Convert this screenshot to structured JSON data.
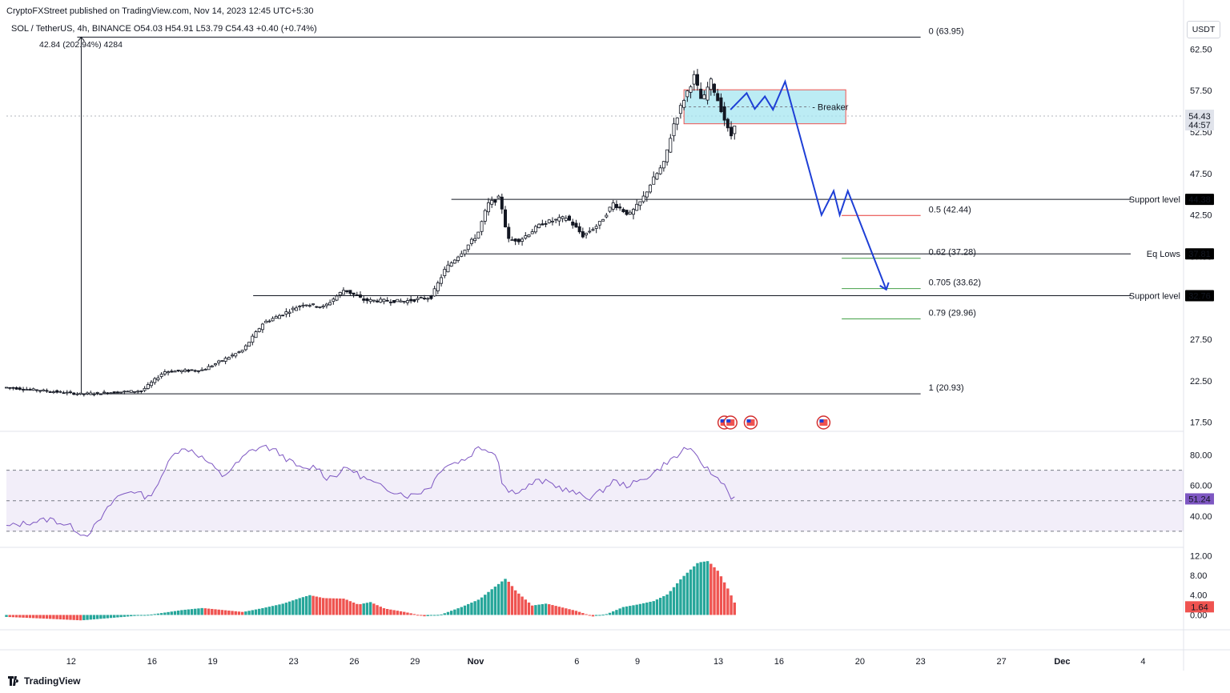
{
  "published_line": "CryptoFXStreet published on TradingView.com, Nov 14, 2023 12:45 UTC+5:30",
  "symbol_line": {
    "symbol": "SOL / TetherUS, 4h, BINANCE",
    "open": "O54.03",
    "high": "H54.91",
    "low": "L53.79",
    "close": "C54.43",
    "change": "+0.40 (+0.74%)"
  },
  "measure_label": "42.84 (202.94%) 4284",
  "currency": "USDT",
  "colors": {
    "up": "#26a69a",
    "down": "#ef5350",
    "rsi": "#7e57c2",
    "projection": "#1e3fd6",
    "breaker_fill": "#a5e5f0",
    "support_label": "#e53935",
    "fib_green": "#43a047"
  },
  "chart_data": [
    {
      "type": "candlestick",
      "title": "SOL / TetherUS, 4h, BINANCE",
      "ylim": [
        16.5,
        66.5
      ],
      "y_ticks": [
        "62.50",
        "57.50",
        "52.50",
        "47.50",
        "42.50",
        "37.50",
        "32.50",
        "27.50",
        "22.50",
        "17.50"
      ],
      "x_tick_labels": [
        "12",
        "16",
        "19",
        "23",
        "26",
        "29",
        "Nov",
        "6",
        "9",
        "13",
        "16",
        "20",
        "23",
        "27",
        "Dec",
        "4"
      ],
      "x_tick_days": [
        12,
        16,
        19,
        23,
        26,
        29,
        32,
        37,
        40,
        44,
        47,
        51,
        54,
        58,
        61,
        65
      ],
      "x_range_days": [
        8.8,
        67.0
      ],
      "key_points": [
        [
          8.8,
          21.7
        ],
        [
          12.5,
          20.9
        ],
        [
          15.5,
          21.3
        ],
        [
          16.6,
          23.6
        ],
        [
          18.5,
          23.8
        ],
        [
          20.5,
          26.2
        ],
        [
          21.5,
          29.5
        ],
        [
          22.5,
          30.6
        ],
        [
          23.5,
          31.8
        ],
        [
          24.5,
          31.4
        ],
        [
          25.5,
          33.5
        ],
        [
          26.5,
          32.2
        ],
        [
          28.5,
          32.1
        ],
        [
          29.8,
          32.6
        ],
        [
          30.5,
          36.0
        ],
        [
          31.5,
          38.5
        ],
        [
          32.1,
          40.2
        ],
        [
          32.6,
          43.8
        ],
        [
          33.2,
          44.6
        ],
        [
          33.6,
          39.5
        ],
        [
          34.2,
          39.5
        ],
        [
          35.3,
          41.5
        ],
        [
          36.5,
          42.2
        ],
        [
          37.3,
          40.0
        ],
        [
          38.1,
          41.4
        ],
        [
          38.8,
          43.9
        ],
        [
          39.6,
          42.5
        ],
        [
          40.2,
          44.2
        ],
        [
          40.7,
          46.5
        ],
        [
          41.3,
          48.7
        ],
        [
          41.8,
          53.5
        ],
        [
          42.3,
          56.5
        ],
        [
          42.8,
          59.2
        ],
        [
          43.2,
          56.0
        ],
        [
          43.6,
          58.8
        ],
        [
          44.1,
          55.5
        ],
        [
          44.6,
          51.8
        ],
        [
          44.9,
          54.4
        ]
      ],
      "annotations": {
        "fib_levels": [
          {
            "label": "0 (63.95)",
            "value": 63.95
          },
          {
            "label": "0.5 (42.44)",
            "value": 42.44
          },
          {
            "label": "0.62 (37.28)",
            "value": 37.28
          },
          {
            "label": "0.705 (33.62)",
            "value": 33.62
          },
          {
            "label": "0.79 (29.96)",
            "value": 29.96
          },
          {
            "label": "1 (20.93)",
            "value": 20.93
          }
        ],
        "horizontal_levels": [
          {
            "label": "Support level",
            "value": 44.38,
            "badge": "44.38"
          },
          {
            "label": "Eq Lows",
            "value": 37.81,
            "badge": "37.81"
          },
          {
            "label": "Support level",
            "value": 32.76,
            "badge": "32.76"
          }
        ],
        "breaker_box": {
          "label": "Breaker",
          "y_low": 53.5,
          "y_high": 57.6,
          "x_start_day": 42.3,
          "x_end_day": 50.3
        },
        "projection_path": [
          [
            44.6,
            55.2
          ],
          [
            45.4,
            57.2
          ],
          [
            45.8,
            55.3
          ],
          [
            46.3,
            56.8
          ],
          [
            46.7,
            55.2
          ],
          [
            47.3,
            58.6
          ],
          [
            49.1,
            42.5
          ],
          [
            49.7,
            45.4
          ],
          [
            50.0,
            42.5
          ],
          [
            50.4,
            45.4
          ],
          [
            52.3,
            33.5
          ]
        ],
        "current_price": {
          "value": 54.43,
          "badge": "54.43",
          "countdown": "44:57"
        }
      }
    },
    {
      "type": "line",
      "name": "RSI",
      "ylim": [
        20,
        95
      ],
      "y_ticks": [
        "80.00",
        "60.00",
        "40.00"
      ],
      "band": [
        30,
        70
      ],
      "midline": 50,
      "last_value": "51.24",
      "key_points": [
        [
          8.8,
          33
        ],
        [
          10,
          36
        ],
        [
          11,
          38
        ],
        [
          12,
          33
        ],
        [
          12.7,
          27
        ],
        [
          13.3,
          35
        ],
        [
          14.2,
          52
        ],
        [
          15.0,
          57
        ],
        [
          15.8,
          52
        ],
        [
          16.5,
          65
        ],
        [
          17.0,
          82
        ],
        [
          17.9,
          84
        ],
        [
          18.7,
          76
        ],
        [
          19.5,
          66
        ],
        [
          20.1,
          73
        ],
        [
          20.8,
          82
        ],
        [
          21.5,
          86
        ],
        [
          22.2,
          82
        ],
        [
          22.9,
          75
        ],
        [
          23.5,
          70
        ],
        [
          24.1,
          73
        ],
        [
          24.6,
          65
        ],
        [
          25.1,
          67
        ],
        [
          25.7,
          72
        ],
        [
          26.2,
          67
        ],
        [
          26.9,
          62
        ],
        [
          27.5,
          58
        ],
        [
          28.1,
          56
        ],
        [
          28.7,
          53
        ],
        [
          29.3,
          56
        ],
        [
          29.8,
          60
        ],
        [
          30.4,
          73
        ],
        [
          31.0,
          75
        ],
        [
          31.6,
          78
        ],
        [
          32.1,
          85
        ],
        [
          32.6,
          84
        ],
        [
          33.1,
          79
        ],
        [
          33.3,
          63
        ],
        [
          33.6,
          56
        ],
        [
          34.3,
          57
        ],
        [
          35.0,
          63
        ],
        [
          35.6,
          62
        ],
        [
          36.3,
          58
        ],
        [
          37.1,
          54
        ],
        [
          37.6,
          52
        ],
        [
          38.2,
          56
        ],
        [
          38.8,
          63
        ],
        [
          39.4,
          60
        ],
        [
          40.0,
          62
        ],
        [
          40.5,
          66
        ],
        [
          41.0,
          70
        ],
        [
          41.5,
          76
        ],
        [
          42.0,
          79
        ],
        [
          42.4,
          86
        ],
        [
          42.8,
          80
        ],
        [
          43.3,
          73
        ],
        [
          43.8,
          66
        ],
        [
          44.2,
          63
        ],
        [
          44.6,
          53
        ],
        [
          44.9,
          51
        ]
      ]
    },
    {
      "type": "bar",
      "name": "Momentum histogram",
      "ylim": [
        -3,
        13.5
      ],
      "y_ticks": [
        "12.00",
        "8.00",
        "4.00",
        "0.00"
      ],
      "last_value": "1.64",
      "key_points": [
        [
          8.8,
          -0.4
        ],
        [
          11.0,
          -0.8
        ],
        [
          12.5,
          -1.1
        ],
        [
          14.0,
          -0.6
        ],
        [
          16.0,
          0.1
        ],
        [
          17.5,
          1.0
        ],
        [
          18.5,
          1.4
        ],
        [
          19.5,
          1.0
        ],
        [
          20.5,
          0.6
        ],
        [
          21.5,
          1.4
        ],
        [
          22.5,
          2.3
        ],
        [
          23.3,
          3.4
        ],
        [
          23.8,
          4.0
        ],
        [
          24.5,
          3.4
        ],
        [
          25.5,
          3.3
        ],
        [
          26.2,
          2.1
        ],
        [
          26.8,
          2.6
        ],
        [
          27.5,
          1.3
        ],
        [
          28.5,
          0.6
        ],
        [
          29.5,
          -0.3
        ],
        [
          30.3,
          0.1
        ],
        [
          31.3,
          1.6
        ],
        [
          32.2,
          3.2
        ],
        [
          32.8,
          5.2
        ],
        [
          33.5,
          7.4
        ],
        [
          34.0,
          4.8
        ],
        [
          34.8,
          1.9
        ],
        [
          35.5,
          2.3
        ],
        [
          36.3,
          1.5
        ],
        [
          37.0,
          0.8
        ],
        [
          37.8,
          -0.3
        ],
        [
          38.5,
          0.2
        ],
        [
          39.3,
          1.6
        ],
        [
          40.0,
          2.1
        ],
        [
          40.8,
          2.8
        ],
        [
          41.5,
          4.2
        ],
        [
          42.2,
          7.5
        ],
        [
          43.0,
          10.6
        ],
        [
          43.5,
          10.9
        ],
        [
          44.0,
          8.8
        ],
        [
          44.5,
          5.1
        ],
        [
          44.9,
          1.64
        ]
      ]
    }
  ]
}
